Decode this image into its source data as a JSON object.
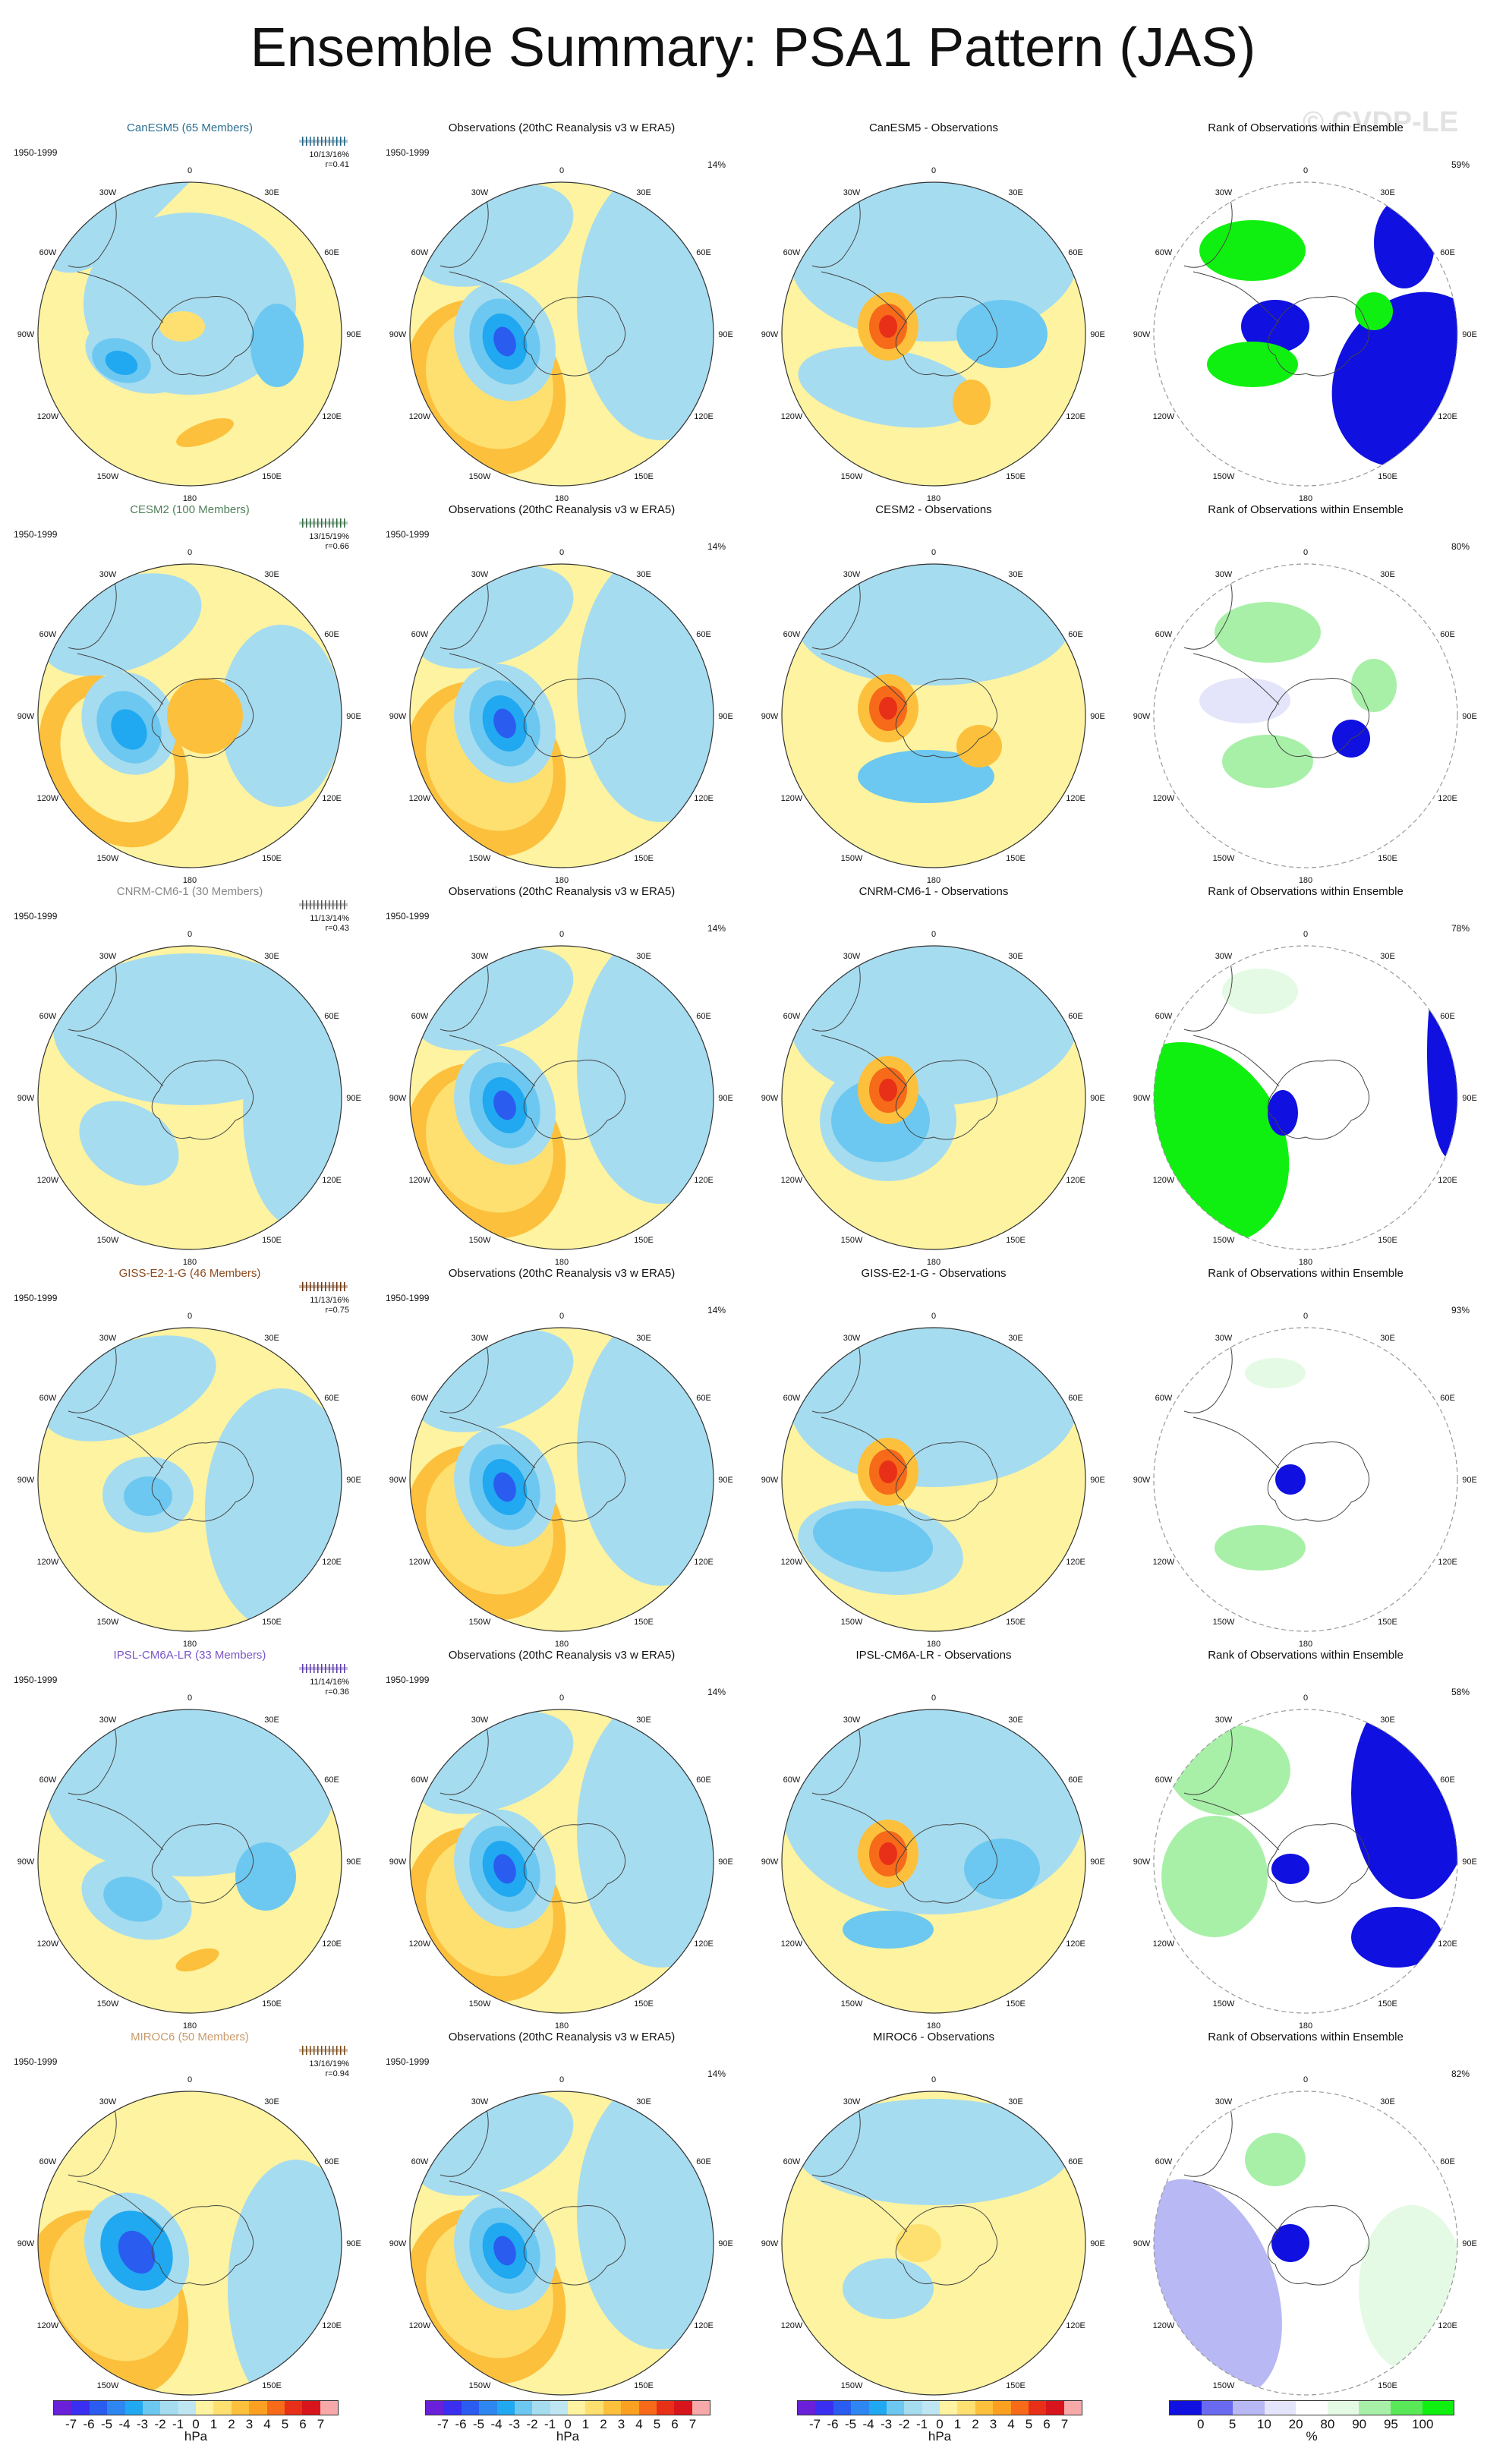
{
  "title": "Ensemble Summary: PSA1 Pattern (JAS)",
  "watermark": "© CVDP-LE",
  "obs_title": "Observations (20thC Reanalysis v3 w ERA5)",
  "rank_title": "Rank of Observations within Ensemble",
  "period": "1950-1999",
  "obs_pct": "14%",
  "lon_labels": {
    "n": "0",
    "30e": "30E",
    "60e": "60E",
    "90e": "90E",
    "120e": "120E",
    "150e": "150E",
    "s": "180",
    "150w": "150W",
    "120w": "120W",
    "90w": "90W",
    "60w": "60W",
    "30w": "30W"
  },
  "colors": {
    "model_title": "#2a7fa0",
    "bg": "#ffffff",
    "circle_edge": "#333333"
  },
  "rows": [
    {
      "model_label": "CanESM5 (65 Members)",
      "diff_title": "CanESM5 - Observations",
      "stats": "10/13/16%",
      "r": "r=0.41",
      "rank_pct": "59%",
      "label_color": "#2c6f8f",
      "bar_color": "#1c5f82"
    },
    {
      "model_label": "CESM2 (100 Members)",
      "diff_title": "CESM2 - Observations",
      "stats": "13/15/19%",
      "r": "r=0.66",
      "rank_pct": "80%",
      "label_color": "#4f7f5a",
      "bar_color": "#2f6a3f"
    },
    {
      "model_label": "CNRM-CM6-1 (30 Members)",
      "diff_title": "CNRM-CM6-1 - Observations",
      "stats": "11/13/14%",
      "r": "r=0.43",
      "rank_pct": "78%",
      "label_color": "#888888",
      "bar_color": "#555555"
    },
    {
      "model_label": "GISS-E2-1-G (46 Members)",
      "diff_title": "GISS-E2-1-G - Observations",
      "stats": "11/13/16%",
      "r": "r=0.75",
      "rank_pct": "93%",
      "label_color": "#8a4a1c",
      "bar_color": "#6b3510"
    },
    {
      "model_label": "IPSL-CM6A-LR (33 Members)",
      "diff_title": "IPSL-CM6A-LR - Observations",
      "stats": "11/14/16%",
      "r": "r=0.36",
      "rank_pct": "58%",
      "label_color": "#7a55c8",
      "bar_color": "#5a3aa8"
    },
    {
      "model_label": "MIROC6 (50 Members)",
      "diff_title": "MIROC6 - Observations",
      "stats": "13/16/19%",
      "r": "r=0.94",
      "rank_pct": "82%",
      "label_color": "#c89a6a",
      "bar_color": "#7a4a1a"
    }
  ],
  "colorbar_hpa": {
    "ticks": [
      "-7",
      "-6",
      "-5",
      "-4",
      "-3",
      "-2",
      "-1",
      "0",
      "1",
      "2",
      "3",
      "4",
      "5",
      "6",
      "7"
    ],
    "unit": "hPa",
    "colors": [
      "#6a1fd8",
      "#3a2ff0",
      "#2a5cf0",
      "#2e86f0",
      "#20a8f0",
      "#6cc8f0",
      "#a6dcf0",
      "#bde6f2",
      "#fdf3a0",
      "#fde070",
      "#fcc03c",
      "#fba020",
      "#f66a1a",
      "#e83018",
      "#d8141c",
      "#f7a8a8"
    ]
  },
  "colorbar_pct": {
    "ticks": [
      "0",
      "5",
      "10",
      "20",
      "80",
      "90",
      "95",
      "100"
    ],
    "unit": "%",
    "colors": [
      "#1010e0",
      "#6a6af0",
      "#b8b8f4",
      "#e4e4fa",
      "#ffffff",
      "#e4fae4",
      "#a8f0a8",
      "#58e858",
      "#10f010"
    ]
  }
}
